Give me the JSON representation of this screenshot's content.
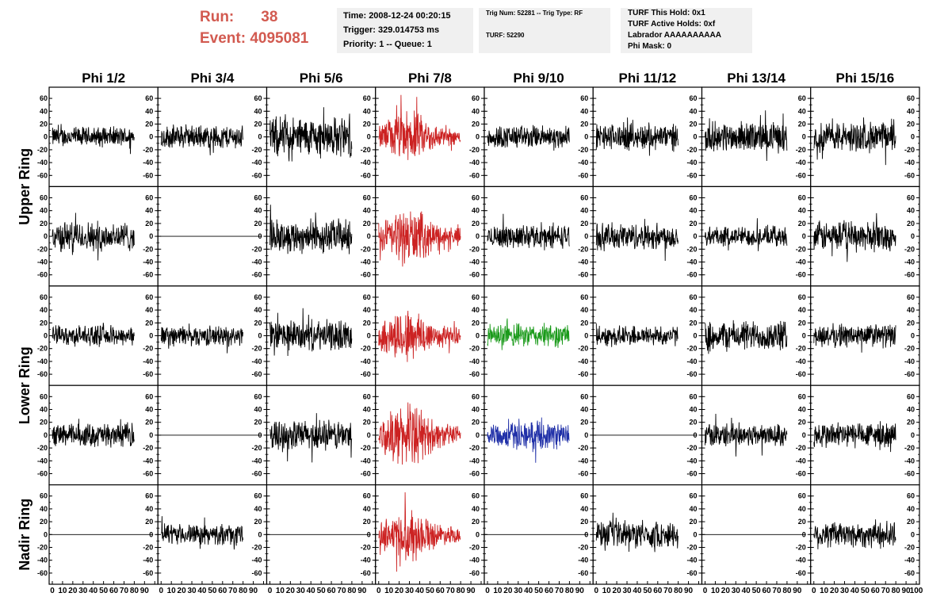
{
  "header": {
    "run_label": "Run:",
    "run_value": "38",
    "event_label": "Event:",
    "event_value": "4095081",
    "time": "Time: 2008-12-24 00:20:15",
    "trigger": "Trigger: 329.014753 ms",
    "priority": "Priority: 1 -- Queue: 1",
    "trig_num": "Trig Num: 52281 -- Trig Type: RF",
    "turf": "TURF: 52290",
    "turf_this_hold": "TURF This Hold: 0x1",
    "turf_active_holds": "TURF Active Holds: 0xf",
    "labrador": "Labrador AAAAAAAAAA",
    "phi_mask": "Phi Mask: 0"
  },
  "colors": {
    "header_text": "#d25a50",
    "info_bg": "#f0f0f0",
    "trace_default": "#000000",
    "trace_red": "#cc2222",
    "trace_green": "#1a9a1a",
    "trace_blue": "#2030a8"
  },
  "chart_data": {
    "type": "line",
    "columns": [
      "Phi 1/2",
      "Phi 3/4",
      "Phi 5/6",
      "Phi 7/8",
      "Phi 9/10",
      "Phi 11/12",
      "Phi 13/14",
      "Phi 15/16"
    ],
    "rows": [
      "Upper Ring",
      "Lower Ring",
      "Nadir Ring"
    ],
    "row_spans": [
      2,
      2,
      1
    ],
    "xlim": [
      0,
      100
    ],
    "ylim": [
      -70,
      70
    ],
    "yticks": [
      -60,
      -40,
      -20,
      0,
      20,
      40,
      60
    ],
    "xticks": [
      0,
      10,
      20,
      30,
      40,
      50,
      60,
      70,
      80,
      90,
      100
    ],
    "panels": [
      [
        {
          "color": "black",
          "amp": 12
        },
        {
          "color": "black",
          "amp": 14
        },
        {
          "color": "black",
          "amp": 24
        },
        {
          "color": "red",
          "amp": 20,
          "burst": true
        },
        {
          "color": "black",
          "amp": 14
        },
        {
          "color": "black",
          "amp": 16
        },
        {
          "color": "black",
          "amp": 18
        },
        {
          "color": "black",
          "amp": 18
        }
      ],
      [
        {
          "color": "black",
          "amp": 18
        },
        {
          "color": "black",
          "amp": 0,
          "flat": true
        },
        {
          "color": "black",
          "amp": 20
        },
        {
          "color": "red",
          "amp": 22,
          "burst": true
        },
        {
          "color": "black",
          "amp": 14
        },
        {
          "color": "black",
          "amp": 16
        },
        {
          "color": "black",
          "amp": 12
        },
        {
          "color": "black",
          "amp": 18
        }
      ],
      [
        {
          "color": "black",
          "amp": 12
        },
        {
          "color": "black",
          "amp": 12
        },
        {
          "color": "black",
          "amp": 18
        },
        {
          "color": "red",
          "amp": 22,
          "burst": true
        },
        {
          "color": "green",
          "amp": 14
        },
        {
          "color": "black",
          "amp": 12
        },
        {
          "color": "black",
          "amp": 18
        },
        {
          "color": "black",
          "amp": 14
        }
      ],
      [
        {
          "color": "black",
          "amp": 14
        },
        {
          "color": "black",
          "amp": 0,
          "flat": true
        },
        {
          "color": "black",
          "amp": 18
        },
        {
          "color": "red",
          "amp": 24,
          "burst": true
        },
        {
          "color": "blue",
          "amp": 16
        },
        {
          "color": "black",
          "amp": 0,
          "flat": true
        },
        {
          "color": "black",
          "amp": 14
        },
        {
          "color": "black",
          "amp": 16
        }
      ],
      [
        {
          "color": "black",
          "amp": 0,
          "flat": true
        },
        {
          "color": "black",
          "amp": 12
        },
        {
          "color": "black",
          "amp": 0,
          "flat": true
        },
        {
          "color": "red",
          "amp": 20,
          "burst": true
        },
        {
          "color": "black",
          "amp": 0,
          "flat": true
        },
        {
          "color": "black",
          "amp": 16
        },
        {
          "color": "black",
          "amp": 0,
          "flat": true
        },
        {
          "color": "black",
          "amp": 16
        }
      ]
    ]
  }
}
